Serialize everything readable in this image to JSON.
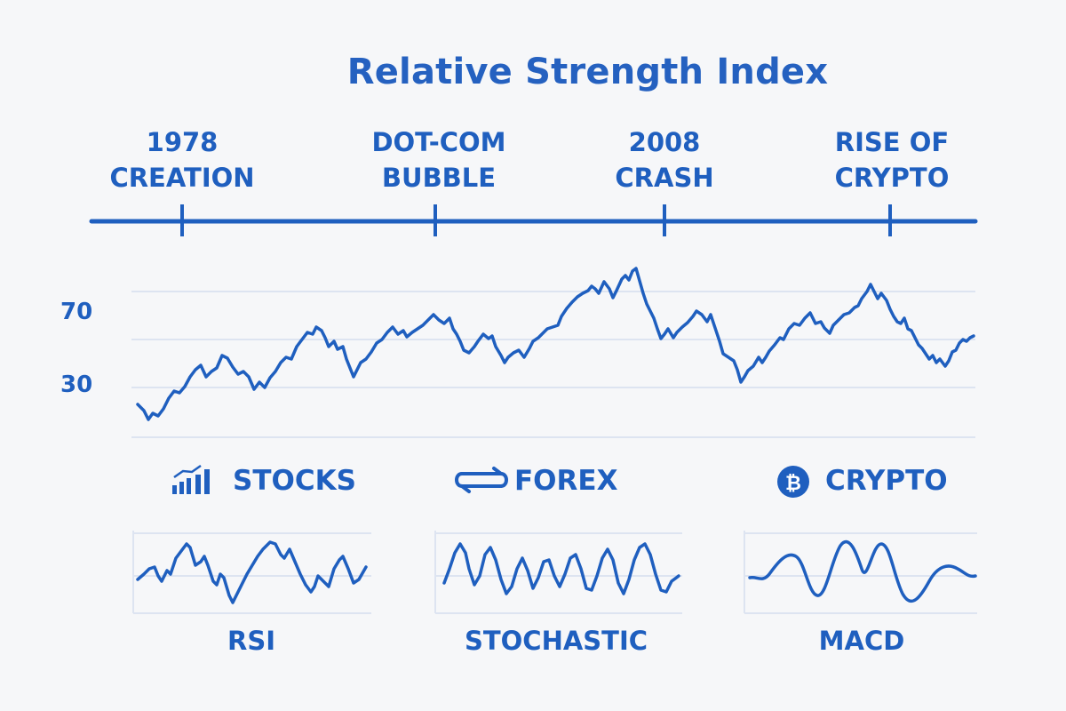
{
  "title": "Relative Strength Index",
  "timeline": {
    "events": [
      {
        "line1": "1978",
        "line2": "CREATION"
      },
      {
        "line1": "DOT-COM",
        "line2": "BUBBLE"
      },
      {
        "line1": "2008",
        "line2": "CRASH"
      },
      {
        "line1": "RISE OF",
        "line2": "CRYPTO"
      }
    ]
  },
  "main_chart": {
    "y_labels": [
      "70",
      "30"
    ]
  },
  "markets": [
    {
      "label": "STOCKS",
      "icon": "bar-chart-icon"
    },
    {
      "label": "FOREX",
      "icon": "exchange-arrows-icon"
    },
    {
      "label": "CRYPTO",
      "icon": "bitcoin-icon"
    }
  ],
  "indicators": [
    {
      "label": "RSI"
    },
    {
      "label": "STOCHASTIC"
    },
    {
      "label": "MACD"
    }
  ],
  "colors": {
    "accent": "#1f5fbf",
    "grid": "#dde4f1",
    "background": "#f6f7f9"
  }
}
